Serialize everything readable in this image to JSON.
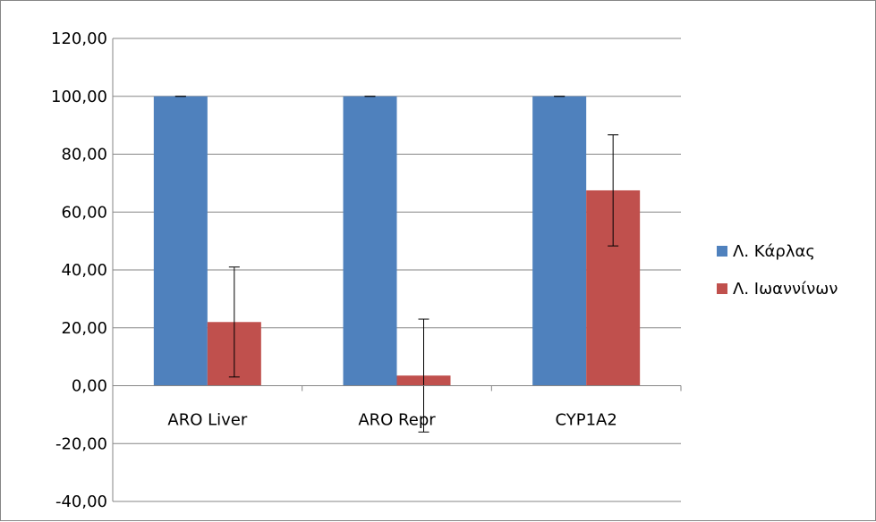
{
  "chart_data": {
    "type": "bar",
    "categories": [
      "ARO Liver",
      "ARO Repr",
      "CYP1A2"
    ],
    "series": [
      {
        "name": "Λ. Κάρλας",
        "color": "#4F81BD",
        "values": [
          100.0,
          100.0,
          100.0
        ],
        "error": [
          0,
          0,
          0
        ]
      },
      {
        "name": "Λ. Ιωαννίνων",
        "color": "#C0504D",
        "values": [
          22.0,
          3.5,
          67.5
        ],
        "error": [
          19.0,
          19.5,
          19.2
        ]
      }
    ],
    "y_ticks": [
      "-40,00",
      "-20,00",
      "0,00",
      "20,00",
      "40,00",
      "60,00",
      "80,00",
      "100,00",
      "120,00"
    ],
    "ylim": [
      -40,
      120
    ],
    "grid": true,
    "legend_position": "right",
    "title": "",
    "xlabel": "",
    "ylabel": ""
  }
}
